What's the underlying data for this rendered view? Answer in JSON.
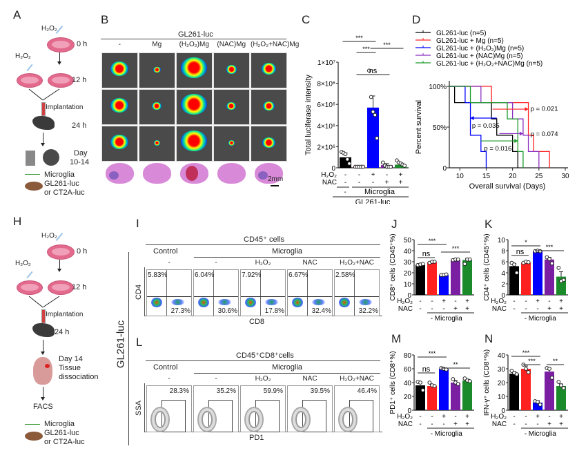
{
  "panels": {
    "A": "A",
    "B": "B",
    "C": "C",
    "D": "D",
    "H": "H",
    "I": "I",
    "J": "J",
    "K": "K",
    "L": "L",
    "M": "M",
    "N": "N"
  },
  "schematic_A": {
    "h2o2_top": "H₂O₂",
    "h2o2_left": "H₂O₂",
    "t0": "0 h",
    "t12": "12 h",
    "implantation": "Implantation",
    "t24": "24 h",
    "day": "Day",
    "day_range": "10-14",
    "legend_microglia": "Microglia",
    "legend_tumor1": "GL261-luc",
    "legend_tumor2": "or CT2A-luc"
  },
  "schematic_H": {
    "h2o2_top": "H₂O₂",
    "h2o2_left": "H₂O₂",
    "t0": "0 h",
    "t12": "12 h",
    "implantation": "Implantation",
    "t24": "24 h",
    "day14": "Day 14",
    "tissue": "Tissue",
    "dissociation": "dissociation",
    "facs": "FACS",
    "legend_microglia": "Microglia",
    "legend_tumor1": "GL261-luc",
    "legend_tumor2": "or CT2A-luc"
  },
  "panel_B": {
    "title": "GL261-luc",
    "columns": [
      "-",
      "Mg",
      "(H₂O₂)Mg",
      "(NAC)Mg",
      "(H₂O₂+NAC)Mg"
    ],
    "scale_bar": "2mm"
  },
  "vertical_label": "GL261-luc",
  "chart_data": [
    {
      "id": "C",
      "type": "bar",
      "ylabel": "Total luciferase intensity",
      "yticks": [
        "0",
        "2×10⁶",
        "4×10⁶",
        "6×10⁶",
        "8×10⁶",
        "1×10⁷"
      ],
      "ylim": [
        0,
        10000000
      ],
      "categories": [
        "-",
        "Mg",
        "(H₂O₂)Mg",
        "(NAC)Mg",
        "(H₂O₂+NAC)Mg"
      ],
      "h2o2_row": [
        "-",
        "-",
        "+",
        "-",
        "+"
      ],
      "nac_row": [
        "-",
        "-",
        "-",
        "+",
        "+"
      ],
      "row_h2o2_label": "H₂O₂",
      "row_nac_label": "NAC",
      "group_minus": "-",
      "group_microglia": "Microglia",
      "group_bottom": "GL261-luc",
      "values": [
        1000000,
        150000,
        5700000,
        250000,
        300000
      ],
      "errors": [
        400000,
        50000,
        1100000,
        150000,
        200000
      ],
      "points": [
        [
          1500000,
          1400000,
          1300000,
          800000,
          400000
        ],
        [
          100000,
          100000,
          100000,
          100000,
          100000
        ],
        [
          9200000,
          6700000,
          5300000,
          5000000,
          2800000
        ],
        [
          500000,
          200000,
          100000,
          100000,
          100000
        ],
        [
          700000,
          500000,
          400000,
          300000,
          200000
        ]
      ],
      "colors": [
        "#000000",
        "#ff2020",
        "#0000ff",
        "#7a1fa2",
        "#1a8a2a"
      ],
      "significance": [
        {
          "from": 1,
          "to": 2,
          "label": "***"
        },
        {
          "from": 0,
          "to": 2,
          "label": "***"
        },
        {
          "from": 2,
          "to": 4,
          "label": "***"
        },
        {
          "from": 1,
          "to": 3,
          "label": "ns"
        }
      ]
    },
    {
      "id": "D",
      "type": "line",
      "xlabel": "Overall survival (Days)",
      "ylabel": "Percent survival",
      "xlim": [
        8,
        30
      ],
      "xticks": [
        "10",
        "15",
        "20",
        "25",
        "30"
      ],
      "ylim": [
        0,
        100
      ],
      "yticks": [
        "0",
        "50%",
        "100%"
      ],
      "series": [
        {
          "name": "GL261-luc (n=5)",
          "color": "#000000",
          "x": [
            0,
            9,
            16,
            17,
            20,
            21
          ],
          "y": [
            100,
            80,
            60,
            40,
            20,
            0
          ]
        },
        {
          "name": "GL261-luc + Mg (n=5)",
          "color": "#ff2020",
          "x": [
            0,
            16,
            23,
            24,
            27
          ],
          "y": [
            100,
            80,
            40,
            20,
            0
          ]
        },
        {
          "name": "GL261-luc + (H₂O₂)Mg (n=5)",
          "color": "#0000ff",
          "x": [
            0,
            11,
            12,
            14,
            15
          ],
          "y": [
            100,
            80,
            40,
            20,
            0
          ]
        },
        {
          "name": "GL261-luc + (NAC)Mg  (n=5)",
          "color": "#8a2fc2",
          "x": [
            0,
            14,
            20,
            22,
            23,
            25
          ],
          "y": [
            100,
            80,
            60,
            40,
            20,
            0
          ]
        },
        {
          "name": "GL261-luc + (H₂O₂+NAC)Mg (n=5)",
          "color": "#1a9a2a",
          "x": [
            0,
            12,
            19,
            21,
            22
          ],
          "y": [
            100,
            80,
            60,
            20,
            0
          ]
        }
      ],
      "annotations": [
        "p = 0.021",
        "p = 0.035",
        "p = 0.074",
        "p = 0.016"
      ]
    },
    {
      "id": "I",
      "type": "table",
      "title": "CD45⁺ cells",
      "group_control": "Control",
      "group_microglia": "Microglia",
      "conditions": [
        "-",
        "-",
        "H₂O₂",
        "NAC",
        "H₂O₂+NAC"
      ],
      "xlabel": "CD8",
      "ylabel": "CD4",
      "cd4_percent": [
        "5.83%",
        "6.04%",
        "7.92%",
        "6.67%",
        "2.58%"
      ],
      "cd8_percent": [
        "27.3%",
        "30.6%",
        "17.8%",
        "32.4%",
        "32.2%"
      ]
    },
    {
      "id": "L",
      "type": "table",
      "title": "CD45⁺CD8⁺cells",
      "group_control": "Control",
      "group_microglia": "Microglia",
      "conditions": [
        "-",
        "-",
        "H₂O₂",
        "NAC",
        "H₂O₂+NAC"
      ],
      "xlabel": "PD1",
      "ylabel": "SSA",
      "pd1_percent": [
        "28.3%",
        "35.2%",
        "59.9%",
        "39.5%",
        "46.4%"
      ]
    },
    {
      "id": "J",
      "type": "bar",
      "ylabel": "CD8⁺ cells (CD45⁺%)",
      "yticks": [
        "0",
        "10",
        "20",
        "30",
        "40",
        "50"
      ],
      "ylim": [
        0,
        50
      ],
      "h2o2_row": [
        "-",
        "-",
        "+",
        "-",
        "+"
      ],
      "nac_row": [
        "-",
        "-",
        "-",
        "+",
        "+"
      ],
      "row_h2o2_label": "H₂O₂",
      "row_nac_label": "NAC",
      "group_label": "- Microglia",
      "values": [
        27,
        29.5,
        18,
        31.5,
        31.5
      ],
      "errors": [
        1,
        1,
        1,
        0.5,
        1.5
      ],
      "points": [
        [
          27,
          27.5,
          28
        ],
        [
          29,
          30,
          30
        ],
        [
          18,
          18,
          18.5
        ],
        [
          31.5,
          32,
          32
        ],
        [
          28,
          32,
          32
        ]
      ],
      "colors": [
        "#000000",
        "#ff2020",
        "#0000ff",
        "#7a1fa2",
        "#1a8a2a"
      ],
      "significance": [
        {
          "from": 0,
          "to": 2,
          "label": "***"
        },
        {
          "from": 0,
          "to": 1,
          "label": "ns"
        },
        {
          "from": 2,
          "to": 4,
          "label": "***"
        }
      ]
    },
    {
      "id": "K",
      "type": "bar",
      "ylabel": "CD4⁺ cells (CD45⁺%)",
      "yticks": [
        "0",
        "2",
        "4",
        "6",
        "8",
        "10"
      ],
      "ylim": [
        0,
        10
      ],
      "h2o2_row": [
        "-",
        "-",
        "+",
        "-",
        "+"
      ],
      "nac_row": [
        "-",
        "-",
        "-",
        "+",
        "+"
      ],
      "row_h2o2_label": "H₂O₂",
      "row_nac_label": "NAC",
      "group_label": "- Microglia",
      "values": [
        5.2,
        5.8,
        7.9,
        6.4,
        3.3
      ],
      "errors": [
        0.5,
        0.2,
        0.1,
        0.4,
        0.9
      ],
      "points": [
        [
          5.8,
          5.5,
          4
        ],
        [
          5.8,
          6,
          5.9
        ],
        [
          7.9,
          8,
          7.9
        ],
        [
          6.8,
          6.5,
          5.7
        ],
        [
          4.9,
          2.5,
          2.7
        ]
      ],
      "colors": [
        "#000000",
        "#ff2020",
        "#0000ff",
        "#7a1fa2",
        "#1a8a2a"
      ],
      "significance": [
        {
          "from": 0,
          "to": 2,
          "label": "*"
        },
        {
          "from": 0,
          "to": 1,
          "label": "ns"
        },
        {
          "from": 2,
          "to": 4,
          "label": "***"
        }
      ]
    },
    {
      "id": "M",
      "type": "bar",
      "ylabel": "PD1⁺ cells (CD8⁺%)",
      "yticks": [
        "0",
        "20",
        "40",
        "60",
        "80"
      ],
      "ylim": [
        0,
        80
      ],
      "h2o2_row": [
        "-",
        "-",
        "+",
        "-",
        "+"
      ],
      "nac_row": [
        "-",
        "-",
        "-",
        "+",
        "+"
      ],
      "row_h2o2_label": "H₂O₂",
      "row_nac_label": "NAC",
      "group_label": "- Microglia",
      "values": [
        36,
        35,
        60,
        40,
        43
      ],
      "errors": [
        4,
        2,
        1,
        3,
        2
      ],
      "points": [
        [
          41,
          40,
          29
        ],
        [
          40,
          36,
          35
        ],
        [
          61,
          60,
          59
        ],
        [
          45,
          40,
          38
        ],
        [
          46,
          43,
          42
        ]
      ],
      "colors": [
        "#000000",
        "#ff2020",
        "#0000ff",
        "#7a1fa2",
        "#1a8a2a"
      ],
      "significance": [
        {
          "from": 0,
          "to": 2,
          "label": "***"
        },
        {
          "from": 0,
          "to": 1,
          "label": "ns"
        },
        {
          "from": 2,
          "to": 4,
          "label": "**"
        }
      ]
    },
    {
      "id": "N",
      "type": "bar",
      "ylabel": "IFN-γ⁺ cells (CD8⁺%)",
      "yticks": [
        "0",
        "10",
        "20",
        "30",
        "40"
      ],
      "ylim": [
        0,
        40
      ],
      "h2o2_row": [
        "-",
        "-",
        "+",
        "-",
        "+"
      ],
      "nac_row": [
        "-",
        "-",
        "-",
        "+",
        "+"
      ],
      "row_h2o2_label": "H₂O₂",
      "row_nac_label": "NAC",
      "group_label": "- Microglia",
      "values": [
        26.5,
        30,
        5.5,
        28,
        17.5
      ],
      "errors": [
        1.5,
        2,
        1.5,
        2.5,
        1.5
      ],
      "points": [
        [
          28.5,
          27,
          26
        ],
        [
          33,
          30,
          27.5
        ],
        [
          6.5,
          6,
          4
        ],
        [
          30.5,
          30,
          23.5
        ],
        [
          20.5,
          18,
          16
        ]
      ],
      "colors": [
        "#000000",
        "#ff2020",
        "#0000ff",
        "#7a1fa2",
        "#1a8a2a"
      ],
      "significance": [
        {
          "from": 0,
          "to": 2,
          "label": "***"
        },
        {
          "from": 1,
          "to": 2,
          "label": "***"
        },
        {
          "from": 3,
          "to": 4,
          "label": "**"
        }
      ]
    }
  ]
}
